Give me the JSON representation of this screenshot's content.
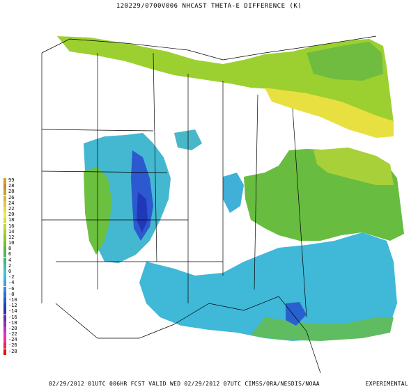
{
  "title": "120229/0700V006 NHCAST THETA-E DIFFERENCE (K)",
  "footer": {
    "valid_text": "02/29/2012 01UTC 006HR FCST VALID WED 02/29/2012 07UTC  CIMSS/ORA/NESDIS/NOAA",
    "badge": "EXPERIMENTAL"
  },
  "legend": {
    "items": [
      {
        "label": "99",
        "color": "#d8a020"
      },
      {
        "label": "28",
        "color": "#c89028"
      },
      {
        "label": "28",
        "color": "#c8a030"
      },
      {
        "label": "26",
        "color": "#d8b838"
      },
      {
        "label": "24",
        "color": "#e0c840"
      },
      {
        "label": "22",
        "color": "#e8d848"
      },
      {
        "label": "20",
        "color": "#f0e850"
      },
      {
        "label": "18",
        "color": "#d8e040"
      },
      {
        "label": "16",
        "color": "#c0d838"
      },
      {
        "label": "14",
        "color": "#a8d030"
      },
      {
        "label": "12",
        "color": "#90c830"
      },
      {
        "label": "10",
        "color": "#78c030"
      },
      {
        "label": "8",
        "color": "#60b840"
      },
      {
        "label": "6",
        "color": "#50b858"
      },
      {
        "label": "4",
        "color": "#40b878"
      },
      {
        "label": "2",
        "color": "#40c0a0"
      },
      {
        "label": "0",
        "color": "#40c8c8"
      },
      {
        "label": "-2",
        "color": "#40b8e0"
      },
      {
        "label": "-4",
        "color": "#40a0e0"
      },
      {
        "label": "-6",
        "color": "#3888e0"
      },
      {
        "label": "-8",
        "color": "#3070d8"
      },
      {
        "label": "-10",
        "color": "#2858d0"
      },
      {
        "label": "-12",
        "color": "#2040c0"
      },
      {
        "label": "-14",
        "color": "#3030b0"
      },
      {
        "label": "-16",
        "color": "#6030b0"
      },
      {
        "label": "-18",
        "color": "#9030b0"
      },
      {
        "label": "-20",
        "color": "#c030c0"
      },
      {
        "label": "-22",
        "color": "#e030c8"
      },
      {
        "label": "-24",
        "color": "#f03090"
      },
      {
        "label": "-26",
        "color": "#f02050"
      },
      {
        "label": "-28",
        "color": "#e01010"
      }
    ]
  },
  "colors": {
    "blue_field": "#3ca8e0",
    "cyan_field": "#40c8b8",
    "green_field": "#6cc040",
    "yellow_green": "#b8d838",
    "yellow": "#e8e040",
    "deep_blue": "#2848c8",
    "borders": "#000000"
  }
}
